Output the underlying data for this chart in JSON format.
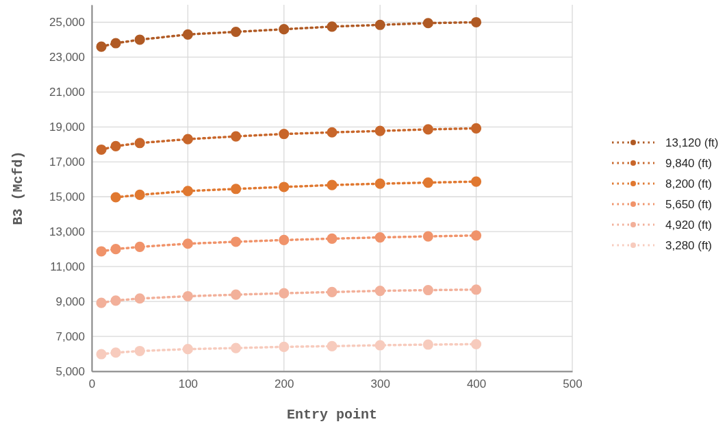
{
  "chart_data": {
    "type": "line",
    "xlabel": "Entry point",
    "ylabel": "B3 (Mcfd)",
    "x": [
      10,
      25,
      50,
      100,
      150,
      200,
      250,
      300,
      350,
      400
    ],
    "series": [
      {
        "name": "13,120 (ft)",
        "color": "#b05a24",
        "values": [
          23600,
          23800,
          24000,
          24300,
          24450,
          24600,
          24750,
          24850,
          24950,
          25000
        ]
      },
      {
        "name": "9,840 (ft)",
        "color": "#c8662a",
        "values": [
          17700,
          17900,
          18080,
          18300,
          18460,
          18600,
          18690,
          18770,
          18860,
          18920
        ]
      },
      {
        "name": "8,200 (ft)",
        "color": "#e07830",
        "values": [
          null,
          14970,
          15110,
          15330,
          15450,
          15560,
          15670,
          15750,
          15810,
          15870
        ]
      },
      {
        "name": "5,650 (ft)",
        "color": "#f0936a",
        "values": [
          11870,
          12000,
          12130,
          12310,
          12420,
          12520,
          12600,
          12670,
          12730,
          12780
        ]
      },
      {
        "name": "4,920 (ft)",
        "color": "#f2b09a",
        "values": [
          8920,
          9050,
          9170,
          9300,
          9390,
          9470,
          9540,
          9610,
          9650,
          9680
        ]
      },
      {
        "name": "3,280 (ft)",
        "color": "#f7cbbd",
        "values": [
          5980,
          6070,
          6160,
          6270,
          6330,
          6400,
          6440,
          6490,
          6530,
          6550
        ]
      }
    ],
    "xlim": [
      0,
      500
    ],
    "xticks": [
      0,
      100,
      200,
      300,
      400,
      500
    ],
    "ylim": [
      5000,
      26000
    ],
    "yticks": [
      {
        "value": 5000,
        "label": "5,000"
      },
      {
        "value": 7000,
        "label": "7,000"
      },
      {
        "value": 9000,
        "label": "9,000"
      },
      {
        "value": 11000,
        "label": "11,000"
      },
      {
        "value": 13000,
        "label": "13,000"
      },
      {
        "value": 15000,
        "label": "15,000"
      },
      {
        "value": 17000,
        "label": "17,000"
      },
      {
        "value": 19000,
        "label": "19,000"
      },
      {
        "value": 21000,
        "label": "21,000"
      },
      {
        "value": 23000,
        "label": "23,000"
      },
      {
        "value": 25000,
        "label": "25,000"
      }
    ],
    "grid": true,
    "legend": "right",
    "marker": "circle",
    "line_style": "dotted"
  }
}
